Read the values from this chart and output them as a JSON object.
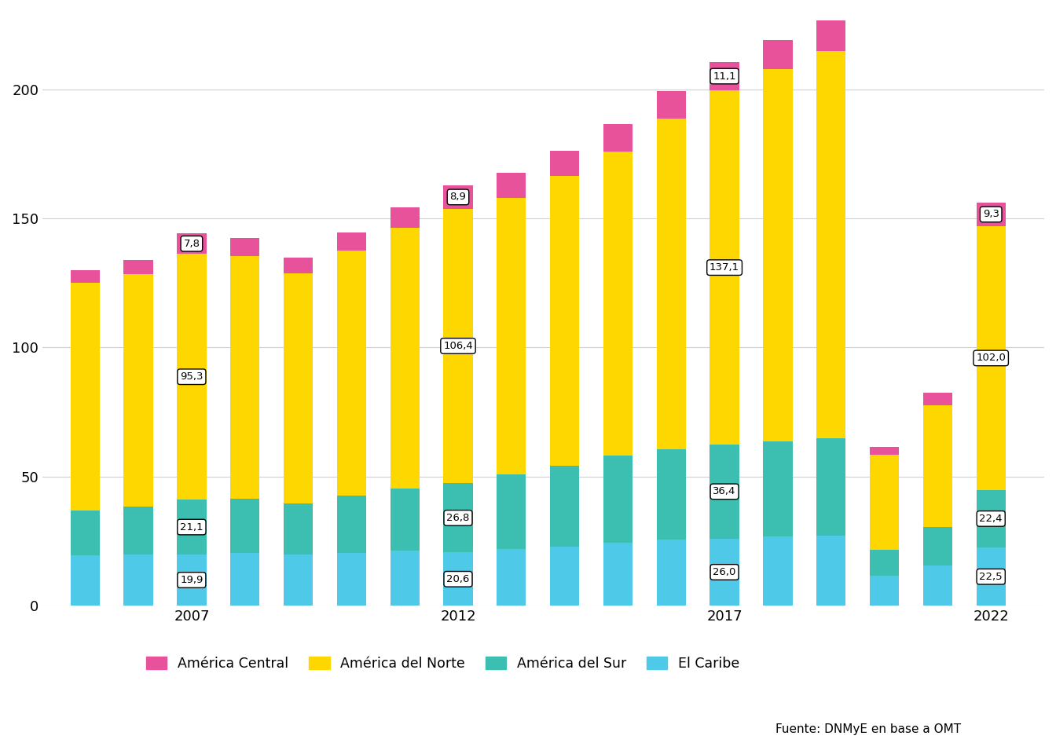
{
  "years": [
    2005,
    2006,
    2007,
    2008,
    2009,
    2010,
    2011,
    2012,
    2013,
    2014,
    2015,
    2016,
    2017,
    2018,
    2019,
    2020,
    2021,
    2022
  ],
  "el_caribe": [
    19.5,
    19.8,
    19.9,
    20.3,
    19.7,
    20.5,
    21.3,
    20.6,
    22.0,
    22.8,
    24.5,
    25.5,
    26.0,
    26.7,
    27.2,
    11.5,
    15.5,
    22.5
  ],
  "america_sur": [
    17.5,
    18.5,
    21.1,
    21.0,
    20.0,
    22.0,
    24.0,
    26.8,
    29.0,
    31.5,
    33.5,
    35.0,
    36.4,
    37.0,
    37.5,
    10.0,
    15.0,
    22.4
  ],
  "america_norte": [
    88.0,
    90.0,
    95.3,
    94.0,
    89.0,
    95.0,
    101.0,
    106.4,
    107.0,
    112.0,
    118.0,
    128.0,
    137.1,
    144.0,
    150.0,
    37.0,
    47.0,
    102.0
  ],
  "america_central": [
    5.0,
    5.5,
    7.8,
    7.2,
    6.0,
    7.0,
    8.0,
    8.9,
    9.5,
    10.0,
    10.5,
    10.8,
    11.1,
    11.5,
    12.0,
    3.0,
    5.0,
    9.3
  ],
  "color_caribe": "#4EC9E8",
  "color_sur": "#3CBFB0",
  "color_norte": "#FFD700",
  "color_central": "#E8529A",
  "annotation_years": [
    2007,
    2012,
    2017,
    2022
  ],
  "annotation_caribe": [
    19.9,
    20.6,
    26.0,
    22.5
  ],
  "annotation_sur": [
    21.1,
    26.8,
    36.4,
    22.4
  ],
  "annotation_norte": [
    95.3,
    106.4,
    137.1,
    102.0
  ],
  "annotation_central": [
    7.8,
    8.9,
    11.1,
    9.3
  ],
  "background_color": "#FFFFFF",
  "grid_color": "#D0D0D0",
  "source_text": "Fuente: DNMyE en base a OMT",
  "legend_labels": [
    "América Central",
    "América del Norte",
    "América del Sur",
    "El Caribe"
  ],
  "ylim": [
    0,
    230
  ],
  "xtick_positions": [
    2007,
    2012,
    2017,
    2022
  ],
  "xtick_labels": [
    "2007",
    "2012",
    "2017",
    "2022"
  ],
  "ytick_positions": [
    0,
    50,
    100,
    150,
    200
  ],
  "ytick_labels": [
    "0",
    "50",
    "100",
    "150",
    "200"
  ]
}
